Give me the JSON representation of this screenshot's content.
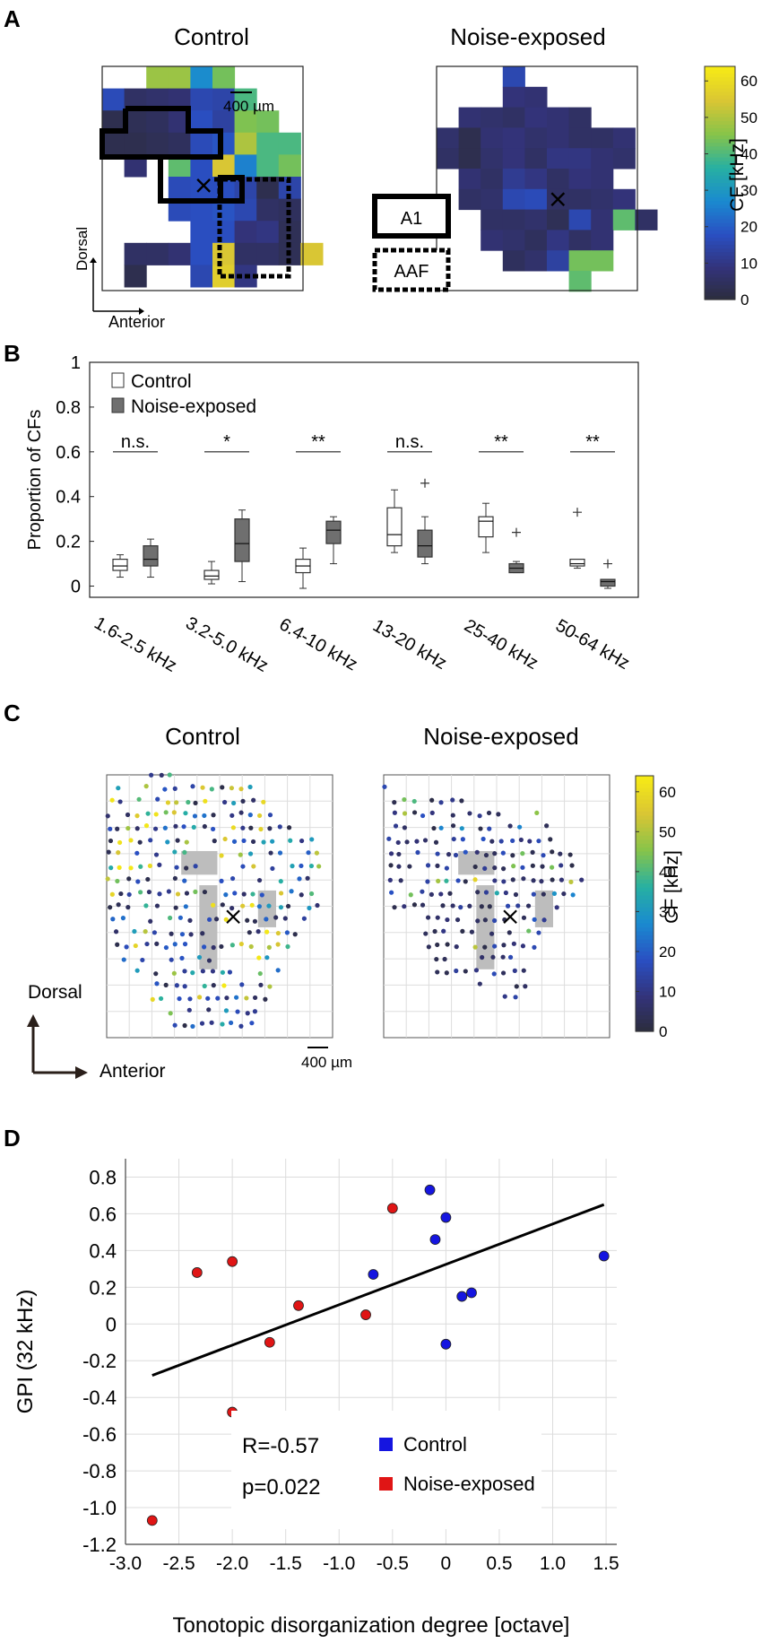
{
  "panels": {
    "a": {
      "letter": "A",
      "control_title": "Control",
      "noise_title": "Noise-exposed",
      "scale_label": "400 µm",
      "legend_a1": "A1",
      "legend_aaf": "AAF",
      "axis_dorsal": "Dorsal",
      "axis_anterior": "Anterior",
      "colorbar_label": "CF [kHz]",
      "colorbar_ticks": [
        "0",
        "10",
        "20",
        "30",
        "40",
        "50",
        "60"
      ]
    },
    "b": {
      "letter": "B"
    },
    "c": {
      "letter": "C",
      "control_title": "Control",
      "noise_title": "Noise-exposed",
      "scale_label": "400 µm",
      "axis_dorsal": "Dorsal",
      "axis_anterior": "Anterior",
      "colorbar_label": "CF [kHz]",
      "colorbar_ticks": [
        "0",
        "10",
        "20",
        "30",
        "40",
        "50",
        "60"
      ]
    },
    "d": {
      "letter": "D"
    }
  },
  "colors": {
    "control_box": "#ffffff",
    "noise_box": "#6f6f6f",
    "control_dot": "#1515e0",
    "noise_dot": "#e01515",
    "fit_line": "#000000",
    "cmap": [
      "#2b2d3a",
      "#33337a",
      "#2a4fc2",
      "#1a8ad0",
      "#27b0a2",
      "#86c44a",
      "#d9c534",
      "#f6ea16"
    ]
  },
  "chart_data": [
    {
      "id": "A-control",
      "type": "heatmap",
      "title": "Control",
      "value_label": "CF [kHz]",
      "grid_size": [
        10,
        10
      ],
      "cells": [
        [
          0,
          2,
          48
        ],
        [
          0,
          3,
          48
        ],
        [
          0,
          4,
          28
        ],
        [
          0,
          5,
          44
        ],
        [
          1,
          0,
          17
        ],
        [
          1,
          1,
          6
        ],
        [
          1,
          2,
          7
        ],
        [
          1,
          3,
          8
        ],
        [
          1,
          4,
          16
        ],
        [
          1,
          5,
          15
        ],
        [
          1,
          6,
          40
        ],
        [
          2,
          0,
          3
        ],
        [
          2,
          1,
          4
        ],
        [
          2,
          2,
          5
        ],
        [
          2,
          3,
          8
        ],
        [
          2,
          4,
          18
        ],
        [
          2,
          5,
          14
        ],
        [
          2,
          6,
          45
        ],
        [
          2,
          7,
          44
        ],
        [
          3,
          0,
          3
        ],
        [
          3,
          1,
          3
        ],
        [
          3,
          2,
          4
        ],
        [
          3,
          3,
          5
        ],
        [
          3,
          4,
          17
        ],
        [
          3,
          5,
          19
        ],
        [
          3,
          6,
          50
        ],
        [
          3,
          7,
          40
        ],
        [
          3,
          8,
          40
        ],
        [
          4,
          1,
          8
        ],
        [
          4,
          3,
          42
        ],
        [
          4,
          4,
          18
        ],
        [
          4,
          5,
          55
        ],
        [
          4,
          6,
          26
        ],
        [
          4,
          7,
          40
        ],
        [
          4,
          8,
          44
        ],
        [
          5,
          3,
          17
        ],
        [
          5,
          4,
          18
        ],
        [
          5,
          5,
          18
        ],
        [
          5,
          6,
          15
        ],
        [
          5,
          7,
          3
        ],
        [
          5,
          8,
          15
        ],
        [
          6,
          3,
          17
        ],
        [
          6,
          4,
          18
        ],
        [
          6,
          5,
          19
        ],
        [
          6,
          6,
          16
        ],
        [
          6,
          7,
          6
        ],
        [
          6,
          8,
          5
        ],
        [
          7,
          4,
          18
        ],
        [
          7,
          5,
          18
        ],
        [
          7,
          6,
          9
        ],
        [
          7,
          7,
          10
        ],
        [
          7,
          8,
          4
        ],
        [
          8,
          1,
          6
        ],
        [
          8,
          2,
          6
        ],
        [
          8,
          3,
          8
        ],
        [
          8,
          4,
          18
        ],
        [
          8,
          5,
          55
        ],
        [
          8,
          6,
          6
        ],
        [
          8,
          7,
          6
        ],
        [
          8,
          8,
          4
        ],
        [
          8,
          9,
          55
        ],
        [
          9,
          1,
          3
        ],
        [
          9,
          4,
          16
        ],
        [
          9,
          5,
          57
        ],
        [
          9,
          6,
          10
        ]
      ],
      "marker": [
        4.6,
        5.4
      ]
    },
    {
      "id": "A-noise",
      "type": "heatmap",
      "title": "Noise-exposed",
      "value_label": "CF [kHz]",
      "grid_size": [
        10,
        10
      ],
      "cells": [
        [
          0,
          3,
          16
        ],
        [
          1,
          3,
          9
        ],
        [
          1,
          4,
          8
        ],
        [
          2,
          1,
          8
        ],
        [
          2,
          2,
          7
        ],
        [
          2,
          3,
          6
        ],
        [
          2,
          4,
          9
        ],
        [
          2,
          5,
          8
        ],
        [
          2,
          6,
          6
        ],
        [
          3,
          0,
          7
        ],
        [
          3,
          1,
          3
        ],
        [
          3,
          2,
          8
        ],
        [
          3,
          3,
          9
        ],
        [
          3,
          4,
          7
        ],
        [
          3,
          5,
          8
        ],
        [
          3,
          6,
          6
        ],
        [
          3,
          7,
          6
        ],
        [
          3,
          8,
          8
        ],
        [
          4,
          0,
          6
        ],
        [
          4,
          1,
          3
        ],
        [
          4,
          2,
          7
        ],
        [
          4,
          3,
          9
        ],
        [
          4,
          4,
          6
        ],
        [
          4,
          5,
          10
        ],
        [
          4,
          6,
          10
        ],
        [
          4,
          7,
          8
        ],
        [
          4,
          8,
          7
        ],
        [
          5,
          1,
          8
        ],
        [
          5,
          2,
          6
        ],
        [
          5,
          3,
          12
        ],
        [
          5,
          4,
          10
        ],
        [
          5,
          5,
          6
        ],
        [
          5,
          6,
          9
        ],
        [
          5,
          7,
          8
        ],
        [
          6,
          1,
          6
        ],
        [
          6,
          2,
          7
        ],
        [
          6,
          3,
          16
        ],
        [
          6,
          4,
          17
        ],
        [
          6,
          5,
          6
        ],
        [
          6,
          6,
          6
        ],
        [
          6,
          7,
          7
        ],
        [
          6,
          8,
          9
        ],
        [
          7,
          2,
          6
        ],
        [
          7,
          3,
          6
        ],
        [
          7,
          4,
          7
        ],
        [
          7,
          5,
          4
        ],
        [
          7,
          6,
          16
        ],
        [
          7,
          7,
          8
        ],
        [
          7,
          8,
          42
        ],
        [
          7,
          9,
          6
        ],
        [
          8,
          2,
          8
        ],
        [
          8,
          3,
          7
        ],
        [
          8,
          4,
          5
        ],
        [
          8,
          5,
          10
        ],
        [
          8,
          6,
          6
        ],
        [
          8,
          7,
          8
        ],
        [
          9,
          3,
          5
        ],
        [
          9,
          4,
          7
        ],
        [
          9,
          5,
          14
        ],
        [
          9,
          6,
          44
        ],
        [
          9,
          7,
          44
        ],
        [
          10,
          6,
          42
        ]
      ],
      "marker": [
        5.5,
        6.5
      ]
    },
    {
      "id": "B",
      "type": "box",
      "ylabel": "Proportion of CFs",
      "ylim": [
        -0.05,
        1.0
      ],
      "yticks": [
        "0",
        "0.2",
        "0.4",
        "0.6",
        "0.8",
        "1"
      ],
      "categories": [
        "1.6-2.5 kHz",
        "3.2-5.0 kHz",
        "6.4-10 kHz",
        "13-20 kHz",
        "25-40 kHz",
        "50-64 kHz"
      ],
      "significance": [
        "n.s.",
        "*",
        "**",
        "n.s.",
        "**",
        "**"
      ],
      "series": [
        {
          "name": "Control",
          "boxes": [
            {
              "wlo": 0.04,
              "q1": 0.07,
              "med": 0.09,
              "q3": 0.12,
              "whi": 0.14
            },
            {
              "wlo": 0.01,
              "q1": 0.03,
              "med": 0.045,
              "q3": 0.07,
              "whi": 0.11
            },
            {
              "wlo": -0.01,
              "q1": 0.06,
              "med": 0.09,
              "q3": 0.12,
              "whi": 0.17
            },
            {
              "wlo": 0.15,
              "q1": 0.18,
              "med": 0.23,
              "q3": 0.35,
              "whi": 0.43
            },
            {
              "wlo": 0.15,
              "q1": 0.22,
              "med": 0.29,
              "q3": 0.31,
              "whi": 0.37
            },
            {
              "wlo": 0.08,
              "q1": 0.09,
              "med": 0.1,
              "q3": 0.12,
              "whi": 0.12,
              "outliers": [
                0.33
              ]
            }
          ]
        },
        {
          "name": "Noise-exposed",
          "boxes": [
            {
              "wlo": 0.04,
              "q1": 0.09,
              "med": 0.12,
              "q3": 0.18,
              "whi": 0.21
            },
            {
              "wlo": 0.02,
              "q1": 0.11,
              "med": 0.19,
              "q3": 0.3,
              "whi": 0.34
            },
            {
              "wlo": 0.1,
              "q1": 0.19,
              "med": 0.25,
              "q3": 0.29,
              "whi": 0.31
            },
            {
              "wlo": 0.1,
              "q1": 0.13,
              "med": 0.18,
              "q3": 0.25,
              "whi": 0.31,
              "outliers": [
                0.46
              ]
            },
            {
              "wlo": 0.06,
              "q1": 0.06,
              "med": 0.08,
              "q3": 0.1,
              "whi": 0.11,
              "outliers": [
                0.24
              ]
            },
            {
              "wlo": -0.01,
              "q1": 0.0,
              "med": 0.02,
              "q3": 0.03,
              "whi": 0.03,
              "outliers": [
                0.1
              ]
            }
          ]
        }
      ]
    },
    {
      "id": "C-control",
      "type": "scatter",
      "title": "Control",
      "value_label": "CF [kHz]",
      "xlim": [
        0,
        10
      ],
      "ylim": [
        0,
        10
      ],
      "seed": 7,
      "rows": [
        [
          10.0,
          2.0,
          3.0
        ],
        [
          9.5,
          0.5,
          6.5
        ],
        [
          9.0,
          0.2,
          7.2
        ],
        [
          8.5,
          0.1,
          8.3
        ],
        [
          8.0,
          0.1,
          8.8
        ],
        [
          7.5,
          0.2,
          9.4
        ],
        [
          7.0,
          0.1,
          9.6
        ],
        [
          6.5,
          0.2,
          9.5
        ],
        [
          6.0,
          0.1,
          9.2
        ],
        [
          5.5,
          0.2,
          9.4
        ],
        [
          5.0,
          0.1,
          9.5
        ],
        [
          4.5,
          0.3,
          8.8
        ],
        [
          4.0,
          0.4,
          8.7
        ],
        [
          3.5,
          0.5,
          8.4
        ],
        [
          3.0,
          0.8,
          8.2
        ],
        [
          2.5,
          1.3,
          7.8
        ],
        [
          2.0,
          1.8,
          7.5
        ],
        [
          1.5,
          2.0,
          7.3
        ],
        [
          1.0,
          2.4,
          6.8
        ],
        [
          0.5,
          2.6,
          6.5
        ]
      ],
      "value_bias": "mixed",
      "gray_patches": [
        [
          3.3,
          7.1,
          4.9,
          6.2
        ],
        [
          4.1,
          5.8,
          4.9,
          2.6
        ],
        [
          6.7,
          5.6,
          7.5,
          4.2
        ]
      ],
      "marker": [
        5.6,
        4.6
      ]
    },
    {
      "id": "C-noise",
      "type": "scatter",
      "title": "Noise-exposed",
      "value_label": "CF [kHz]",
      "xlim": [
        0,
        10
      ],
      "ylim": [
        0,
        10
      ],
      "seed": 19,
      "rows": [
        [
          9.5,
          0.0,
          0.2
        ],
        [
          9.0,
          0.5,
          3.6
        ],
        [
          8.5,
          0.5,
          6.8
        ],
        [
          8.0,
          0.5,
          8.0
        ],
        [
          7.5,
          0.2,
          8.2
        ],
        [
          7.0,
          0.3,
          8.6
        ],
        [
          6.5,
          0.3,
          8.6
        ],
        [
          6.0,
          0.3,
          8.8
        ],
        [
          5.5,
          0.4,
          8.4
        ],
        [
          5.0,
          0.5,
          7.9
        ],
        [
          4.5,
          1.6,
          7.2
        ],
        [
          4.0,
          1.8,
          7.0
        ],
        [
          3.5,
          2.0,
          7.0
        ],
        [
          3.0,
          2.3,
          6.8
        ],
        [
          2.5,
          2.4,
          6.4
        ],
        [
          2.0,
          3.8,
          6.4
        ],
        [
          1.5,
          5.4,
          6.0
        ]
      ],
      "value_bias": "low",
      "gray_patches": [
        [
          3.3,
          7.1,
          4.9,
          6.2
        ],
        [
          4.1,
          5.8,
          4.9,
          2.6
        ],
        [
          6.7,
          5.6,
          7.5,
          4.2
        ]
      ],
      "marker": [
        5.6,
        4.6
      ]
    },
    {
      "id": "D",
      "type": "scatter",
      "xlabel": "Tonotopic disorganization degree [octave]",
      "ylabel": "GPI (32 kHz)",
      "xlim": [
        -3.0,
        1.6
      ],
      "ylim": [
        -1.2,
        0.9
      ],
      "xticks": [
        "-3.0",
        "-2.5",
        "-2.0",
        "-1.5",
        "-1.0",
        "-0.5",
        "0",
        "0.5",
        "1.0",
        "1.5"
      ],
      "yticks": [
        "-1.2",
        "-1.0",
        "-0.8",
        "-0.6",
        "-0.4",
        "-0.2",
        "0",
        "0.2",
        "0.4",
        "0.6",
        "0.8"
      ],
      "series": [
        {
          "name": "Control",
          "x": [
            -0.15,
            -0.1,
            0.0,
            -0.68,
            0.15,
            0.24,
            0.0,
            1.48
          ],
          "y": [
            0.73,
            0.46,
            0.58,
            0.27,
            0.15,
            0.17,
            -0.11,
            0.37
          ]
        },
        {
          "name": "Noise-exposed",
          "x": [
            -0.5,
            -2.33,
            -2.0,
            -1.38,
            -0.75,
            -1.65,
            -2.0,
            -2.75
          ],
          "y": [
            0.63,
            0.28,
            0.34,
            0.1,
            0.05,
            -0.1,
            -0.48,
            -1.07
          ]
        }
      ],
      "fit": {
        "x": [
          -2.75,
          1.48
        ],
        "y": [
          -0.28,
          0.65
        ]
      },
      "stats": {
        "r": "R=-0.57",
        "p": "p=0.022"
      }
    }
  ]
}
